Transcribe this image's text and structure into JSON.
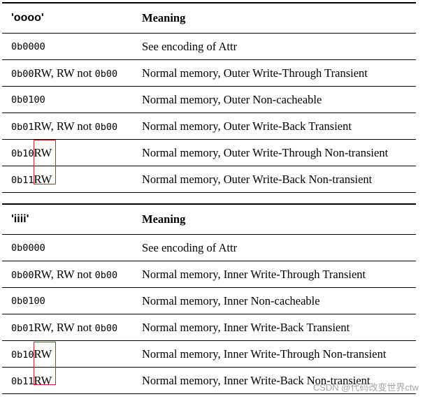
{
  "page": {
    "background": "#ffffff",
    "watermark": {
      "text": "CSDN @代码改变世界ctw",
      "color": "#a6a6a6"
    }
  },
  "annotations": {
    "rw_box_color": "#cc2528",
    "line_color": "#000000"
  },
  "tables": [
    {
      "header": {
        "code": "'oooo'",
        "meaning": "Meaning"
      },
      "rows": [
        {
          "code": [
            {
              "text": "0b0000",
              "font": "mono"
            }
          ],
          "meaning": "See encoding of Attr"
        },
        {
          "code": [
            {
              "text": "0b00",
              "font": "mono"
            },
            {
              "text": "RW, RW not ",
              "font": "serif"
            },
            {
              "text": "0b00",
              "font": "mono"
            }
          ],
          "meaning": "Normal memory, Outer Write-Through Transient"
        },
        {
          "code": [
            {
              "text": "0b0100",
              "font": "mono"
            }
          ],
          "meaning": "Normal memory, Outer Non-cacheable"
        },
        {
          "code": [
            {
              "text": "0b01",
              "font": "mono"
            },
            {
              "text": "RW, RW not ",
              "font": "serif"
            },
            {
              "text": "0b00",
              "font": "mono"
            }
          ],
          "meaning": "Normal memory, Outer Write-Back Transient"
        },
        {
          "code": [
            {
              "text": "0b10",
              "font": "mono"
            },
            {
              "text": "RW",
              "font": "serif"
            }
          ],
          "meaning": "Normal memory, Outer Write-Through Non-transient"
        },
        {
          "code": [
            {
              "text": "0b11",
              "font": "mono"
            },
            {
              "text": "RW",
              "font": "serif"
            }
          ],
          "meaning": "Normal memory, Outer Write-Back Non-transient"
        }
      ]
    },
    {
      "header": {
        "code": "'iiii'",
        "meaning": "Meaning"
      },
      "rows": [
        {
          "code": [
            {
              "text": "0b0000",
              "font": "mono"
            }
          ],
          "meaning": "See encoding of Attr"
        },
        {
          "code": [
            {
              "text": "0b00",
              "font": "mono"
            },
            {
              "text": "RW, RW not ",
              "font": "serif"
            },
            {
              "text": "0b00",
              "font": "mono"
            }
          ],
          "meaning": "Normal memory, Inner Write-Through Transient"
        },
        {
          "code": [
            {
              "text": "0b0100",
              "font": "mono"
            }
          ],
          "meaning": "Normal memory, Inner Non-cacheable"
        },
        {
          "code": [
            {
              "text": "0b01",
              "font": "mono"
            },
            {
              "text": "RW, RW not ",
              "font": "serif"
            },
            {
              "text": "0b00",
              "font": "mono"
            }
          ],
          "meaning": "Normal memory, Inner Write-Back Transient"
        },
        {
          "code": [
            {
              "text": "0b10",
              "font": "mono"
            },
            {
              "text": "RW",
              "font": "serif"
            }
          ],
          "meaning": "Normal memory, Inner Write-Through Non-transient"
        },
        {
          "code": [
            {
              "text": "0b11",
              "font": "mono"
            },
            {
              "text": "RW",
              "font": "serif"
            }
          ],
          "meaning": "Normal memory, Inner Write-Back Non-transient"
        }
      ]
    }
  ]
}
